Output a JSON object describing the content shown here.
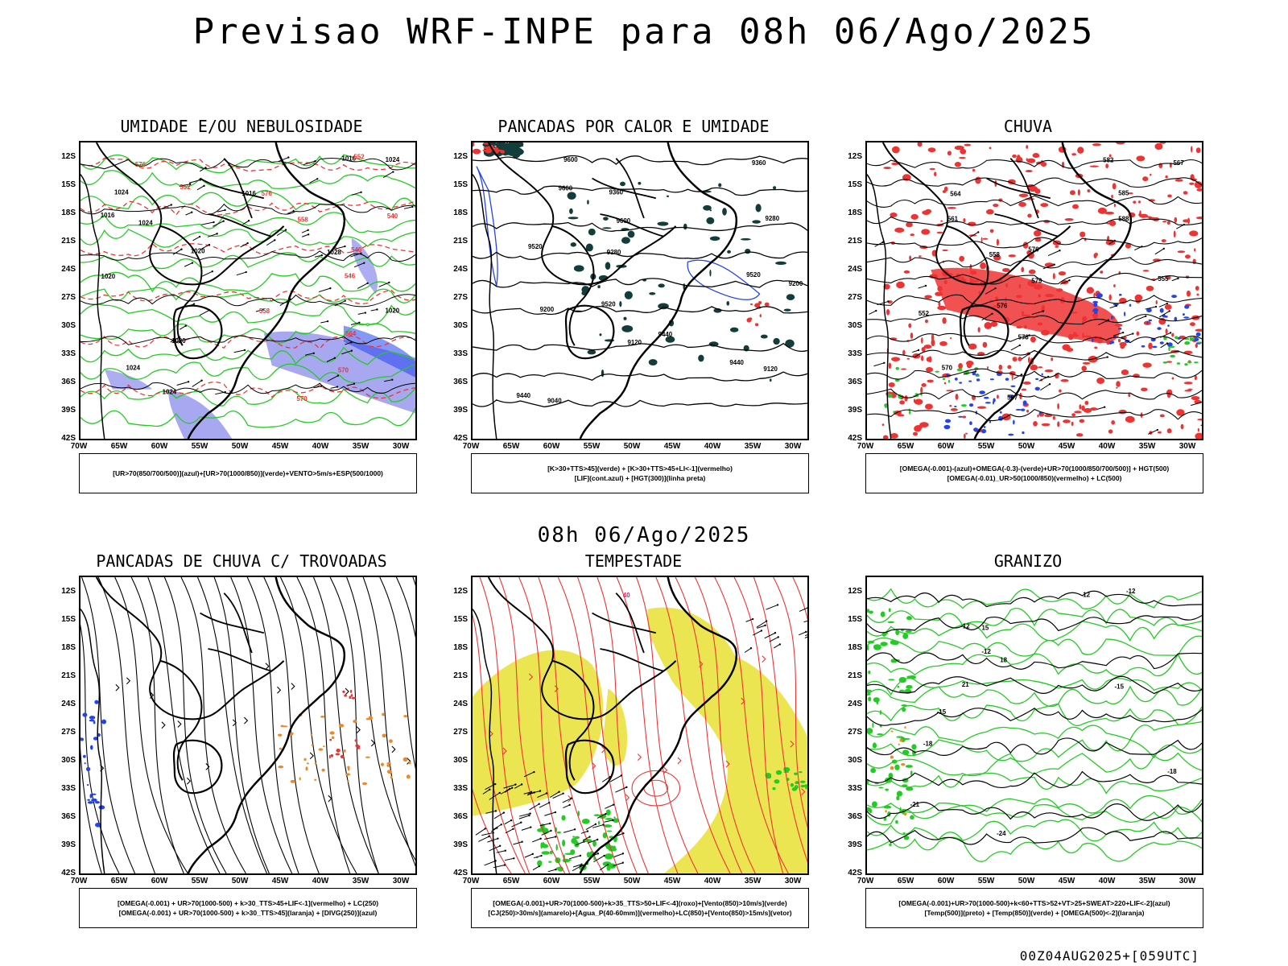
{
  "header": {
    "title": "Previsao WRF-INPE  para 08h 06/Ago/2025"
  },
  "mid_label": "08h 06/Ago/2025",
  "footer": "00Z04AUG2025+[059UTC]",
  "axes": {
    "lat_ticks": [
      "12S",
      "15S",
      "18S",
      "21S",
      "24S",
      "27S",
      "30S",
      "33S",
      "36S",
      "39S",
      "42S"
    ],
    "lon_ticks": [
      "70W",
      "65W",
      "60W",
      "55W",
      "50W",
      "45W",
      "40W",
      "35W",
      "30W"
    ]
  },
  "colors": {
    "green": "#22cc22",
    "red": "#ee3333",
    "blue": "#2244ee",
    "lavender": "#9999ee",
    "yellow": "#e6e033",
    "orange": "#ee8822",
    "darkteal": "#133d3a",
    "black": "#000000"
  },
  "panels": [
    {
      "id": "umidade",
      "title": "UMIDADE E/OU NEBULOSIDADE",
      "legend": [
        "[UR>70(850/700/500)](azul)+[UR>70(1000/850)](verde)+VENTO>5m/s+ESP(500/1000)"
      ],
      "contour_labels": [
        "1016",
        "1016",
        "1016",
        "1020",
        "1020",
        "1020",
        "1020",
        "1024",
        "1024",
        "1024",
        "1024",
        "1024",
        "1028",
        "552",
        "552",
        "540",
        "540",
        "546",
        "558",
        "564",
        "570",
        "570",
        "576",
        "576",
        "558"
      ]
    },
    {
      "id": "pancadas-calor",
      "title": "PANCADAS POR CALOR E UMIDADE",
      "legend": [
        "[K>30+TTS>45](verde) + [K>30+TTS>45+LI<-1](vermelho)",
        "[LIF](cont.azul) + [HGT(300)](linha preta)"
      ],
      "contour_labels": [
        "9600",
        "9600",
        "9600",
        "9520",
        "9520",
        "9520",
        "9440",
        "9440",
        "9440",
        "9360",
        "9360",
        "9280",
        "9280",
        "9200",
        "9200",
        "9120",
        "9120",
        "9040"
      ]
    },
    {
      "id": "chuva",
      "title": "CHUVA",
      "legend": [
        "[OMEGA(-0.001)-(azul)+OMEGA(-0.3)-(verde)+UR>70(1000/850/700/500)] + HGT(500)",
        "[OMEGA(-0.01)_UR>50(1000/850)(vermelho) + LC(500)"
      ],
      "contour_labels": [
        "582",
        "585",
        "588",
        "576",
        "579",
        "576",
        "573",
        "570",
        "567",
        "567",
        "564",
        "561",
        "558",
        "555",
        "552"
      ]
    },
    {
      "id": "pancadas-trovoadas",
      "title": "PANCADAS DE CHUVA C/ TROVOADAS",
      "legend": [
        "[OMEGA(-0.001) + UR>70(1000-500) + k>30_TTS>45+LIF<-1](vermelho) + LC(250)",
        "[OMEGA(-0.001) + UR>70(1000-500) + k>30_TTS>45](laranja) + [DIVG(250)](azul)"
      ],
      "contour_labels": []
    },
    {
      "id": "tempestade",
      "title": "TEMPESTADE",
      "legend": [
        "[OMEGA(-0.001)+UR>70(1000-500)+k>35_TTS>50+LIF<-4](roxo)+[Vento(850)>10m/s](verde)",
        "[CJ(250)>30m/s](amarelo)+[Agua_P(40-60mm)](vermelho)+LC(850)+[Vento(850)>15m/s](vetor)"
      ],
      "contour_labels": [
        "40"
      ]
    },
    {
      "id": "granizo",
      "title": "GRANIZO",
      "legend": [
        "[OMEGA(-0.001)+UR>70(1000-500)+k<60+TTS>52+VT>25+SWEAT>220+LIF<-2](azul)",
        "[Temp(500)](preto) + [Temp(850)](verde) + [OMEGA(500)<-2](laranja)"
      ],
      "contour_labels": [
        "-12",
        "-12",
        "-12",
        "-15",
        "-15",
        "-18",
        "-18",
        "-21",
        "-24",
        "12",
        "15",
        "18",
        "21"
      ]
    }
  ]
}
